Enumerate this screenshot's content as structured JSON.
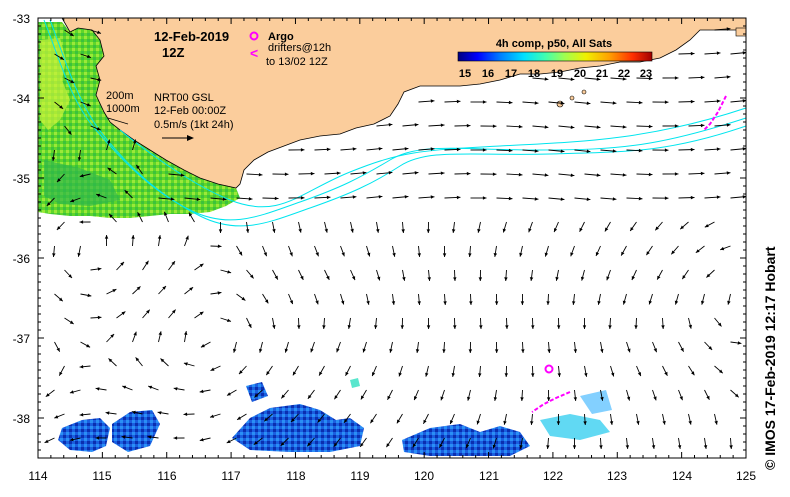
{
  "header": {
    "date": "12-Feb-2019",
    "time": "12Z"
  },
  "legend": {
    "argo_label": "Argo",
    "drifter_symbol": "<",
    "drifters_label": "drifters@12h",
    "drifters_to": "to 13/02 12Z"
  },
  "colorbar": {
    "title": "4h comp, p50, All Sats",
    "ticks": [
      "15",
      "16",
      "17",
      "18",
      "19",
      "20",
      "21",
      "22",
      "23"
    ],
    "colors": [
      "#00007f",
      "#0000d8",
      "#0044ff",
      "#00a0ff",
      "#11f5e6",
      "#5bff9e",
      "#a4ff55",
      "#eeff0a",
      "#ffbf00",
      "#ff7b00",
      "#ff3600",
      "#b20000"
    ]
  },
  "annotations": {
    "isobath_200": "200m",
    "isobath_1000": "1000m",
    "current_source": "NRT00 GSL",
    "current_time": "12-Feb 00:00Z",
    "scale_label": "0.5m/s (1kt 24h)"
  },
  "axes": {
    "x_ticks": [
      "114",
      "115",
      "116",
      "117",
      "118",
      "119",
      "120",
      "121",
      "122",
      "123",
      "124",
      "125"
    ],
    "y_ticks": [
      "-33",
      "-34",
      "-35",
      "-36",
      "-37",
      "-38"
    ]
  },
  "map_data": {
    "lon_range": [
      114,
      125
    ],
    "lat_range": [
      -38.5,
      -33
    ],
    "argo_float": {
      "lon": 121.9,
      "lat": -37.4
    },
    "drifters": [
      {
        "lon": 124.6,
        "lat": -34.1
      },
      {
        "lon": 122.0,
        "lat": -37.9
      }
    ]
  },
  "colors": {
    "land": "#fbcd9c",
    "isobath": "#00e5ee",
    "drifter": "#ff00ff",
    "arrow": "#000000"
  },
  "credit": "© IMOS 17-Feb-2019 12:17 Hobart"
}
